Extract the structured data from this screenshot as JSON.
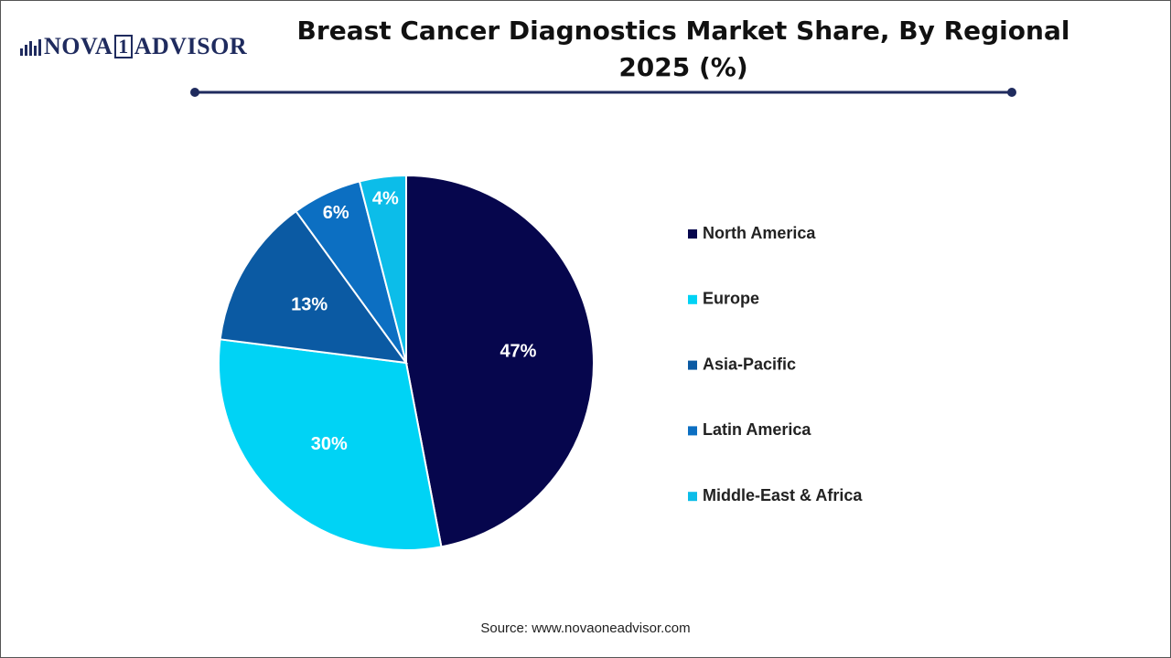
{
  "logo": [
    "NOVA",
    "1",
    "ADVISOR"
  ],
  "source": "Source: www.novaoneadvisor.com",
  "chart_data": {
    "type": "pie",
    "title": "Breast Cancer Diagnostics Market Share, By Regional 2025 (%)",
    "categories": [
      "North America",
      "Europe",
      "Asia-Pacific",
      "Latin America",
      "Middle-East & Africa"
    ],
    "values": [
      47,
      30,
      13,
      6,
      4
    ],
    "value_labels": [
      "47%",
      "30%",
      "13%",
      "6%",
      "4%"
    ],
    "colors": [
      "#06064d",
      "#00d3f5",
      "#0b5aa3",
      "#0c6fc2",
      "#0cbde9"
    ],
    "legend": "right"
  }
}
